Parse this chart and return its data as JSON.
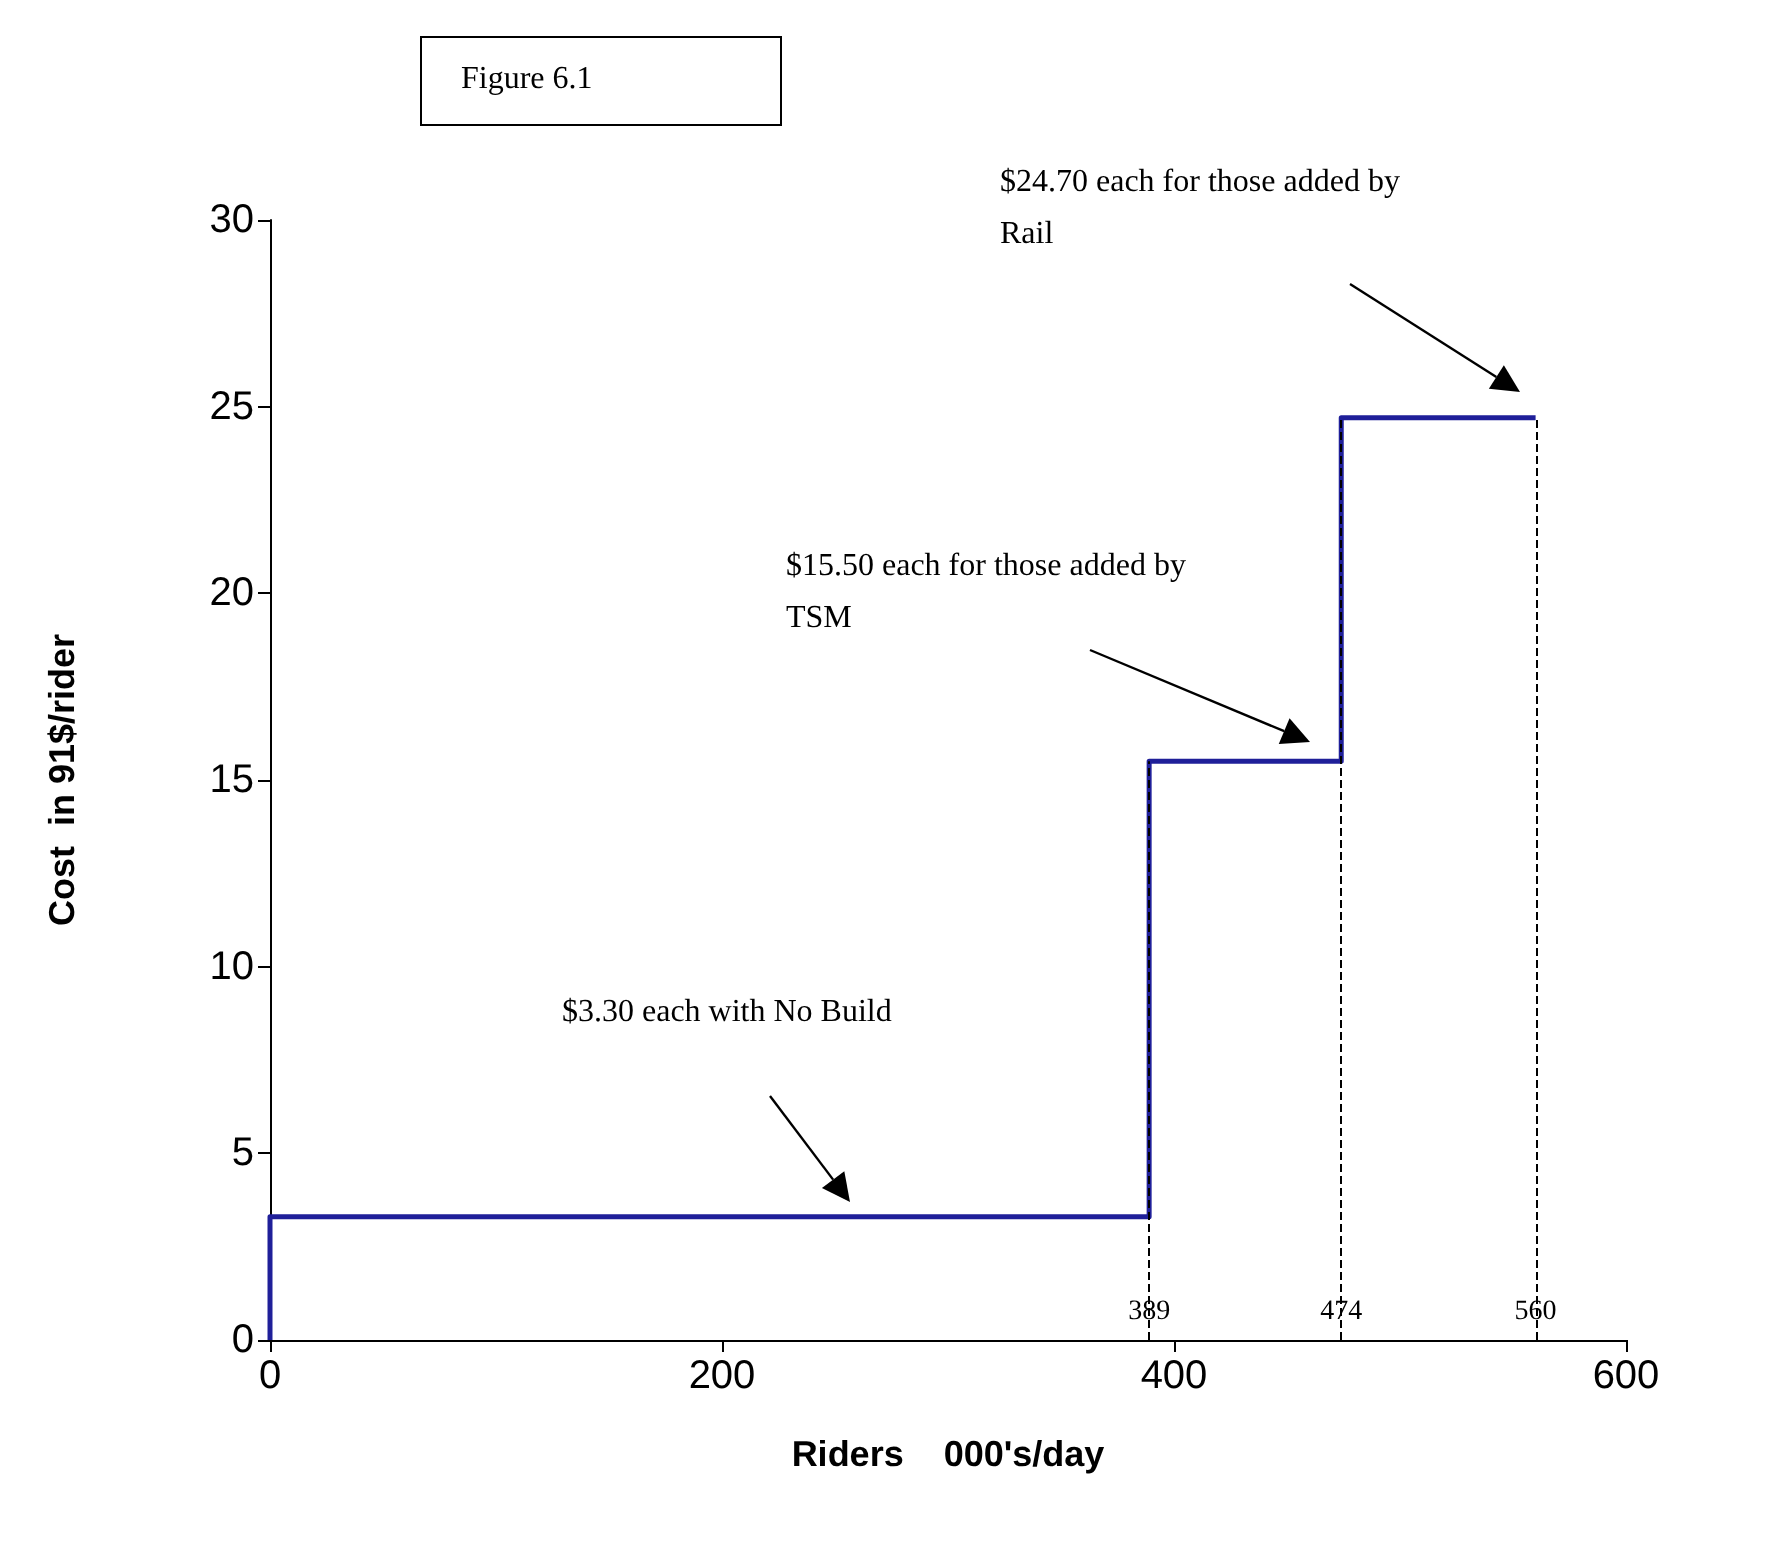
{
  "chart_data": {
    "type": "line",
    "title": "Figure 6.1",
    "xlabel": "Riders    000's/day",
    "ylabel": "Cost  in 91$/rider",
    "x": [
      0,
      0,
      389,
      389,
      474,
      474,
      560
    ],
    "series": [
      {
        "color": "#1f1f99",
        "values": [
          0,
          3.3,
          3.3,
          15.5,
          15.5,
          24.7,
          24.7
        ]
      }
    ],
    "xlim": [
      0,
      600
    ],
    "xticks": [
      0,
      200,
      400,
      600
    ],
    "ylim": [
      0,
      30
    ],
    "yticks": [
      0,
      5,
      10,
      15,
      20,
      25,
      30
    ],
    "grid": false,
    "marker": "none",
    "line_style": "solid",
    "ref_lines": [
      {
        "axis": "x",
        "value": 389,
        "label": "389",
        "color": "#000000",
        "line_style": "dashed"
      },
      {
        "axis": "x",
        "value": 474,
        "label": "474",
        "color": "#000000",
        "line_style": "dashed"
      },
      {
        "axis": "x",
        "value": 560,
        "label": "560",
        "color": "#000000",
        "line_style": "dashed"
      }
    ],
    "annotations": [
      "$24.70 each for those added by Rail",
      "$15.50 each for those added by TSM",
      "$3.30 each with No Build"
    ]
  }
}
